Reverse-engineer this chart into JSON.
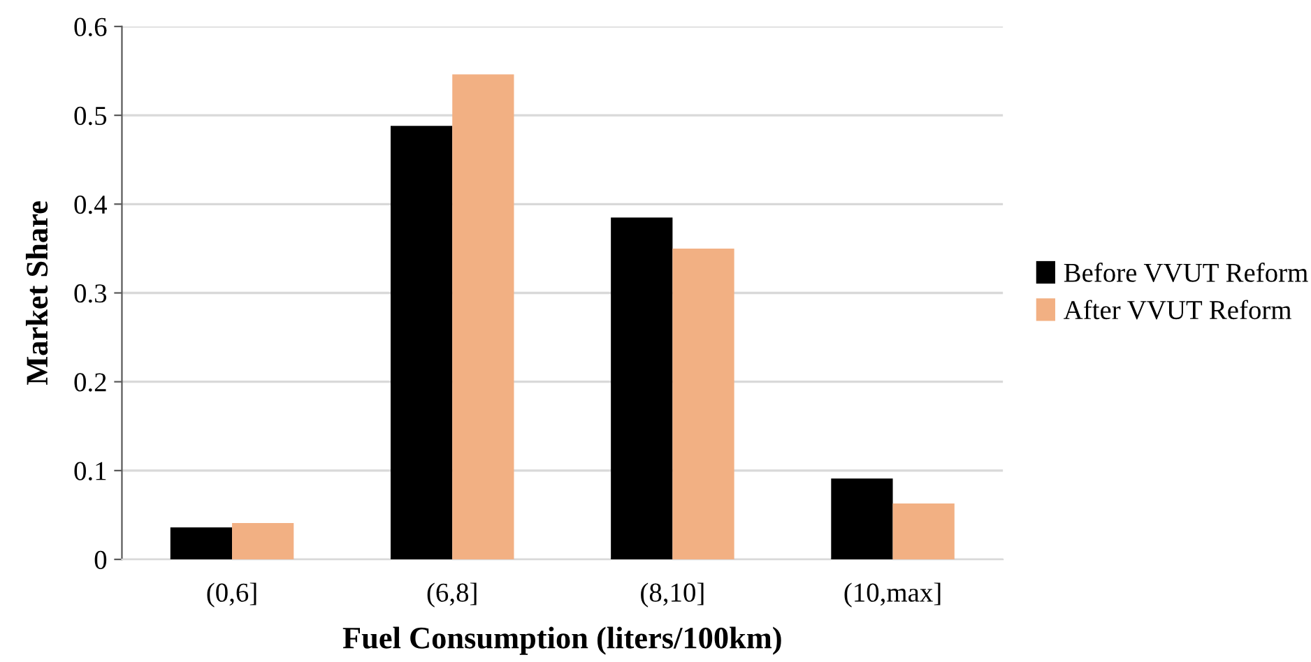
{
  "chart_data": {
    "type": "bar",
    "xlabel": "Fuel Consumption (liters/100km)",
    "ylabel": "Market Share",
    "categories": [
      "(0,6]",
      "(6,8]",
      "(8,10]",
      "(10,max]"
    ],
    "series": [
      {
        "name": "Before VVUT Reform",
        "color": "#000000",
        "values": [
          0.036,
          0.488,
          0.385,
          0.091
        ]
      },
      {
        "name": "After VVUT Reform",
        "color": "#f2b083",
        "values": [
          0.041,
          0.546,
          0.35,
          0.063
        ]
      }
    ],
    "ylim": [
      0,
      0.6
    ],
    "yticks": [
      {
        "value": 0,
        "label": "0"
      },
      0.1,
      0.2,
      0.3,
      0.4,
      0.5,
      0.6
    ],
    "grid": "y",
    "legend": "right"
  }
}
